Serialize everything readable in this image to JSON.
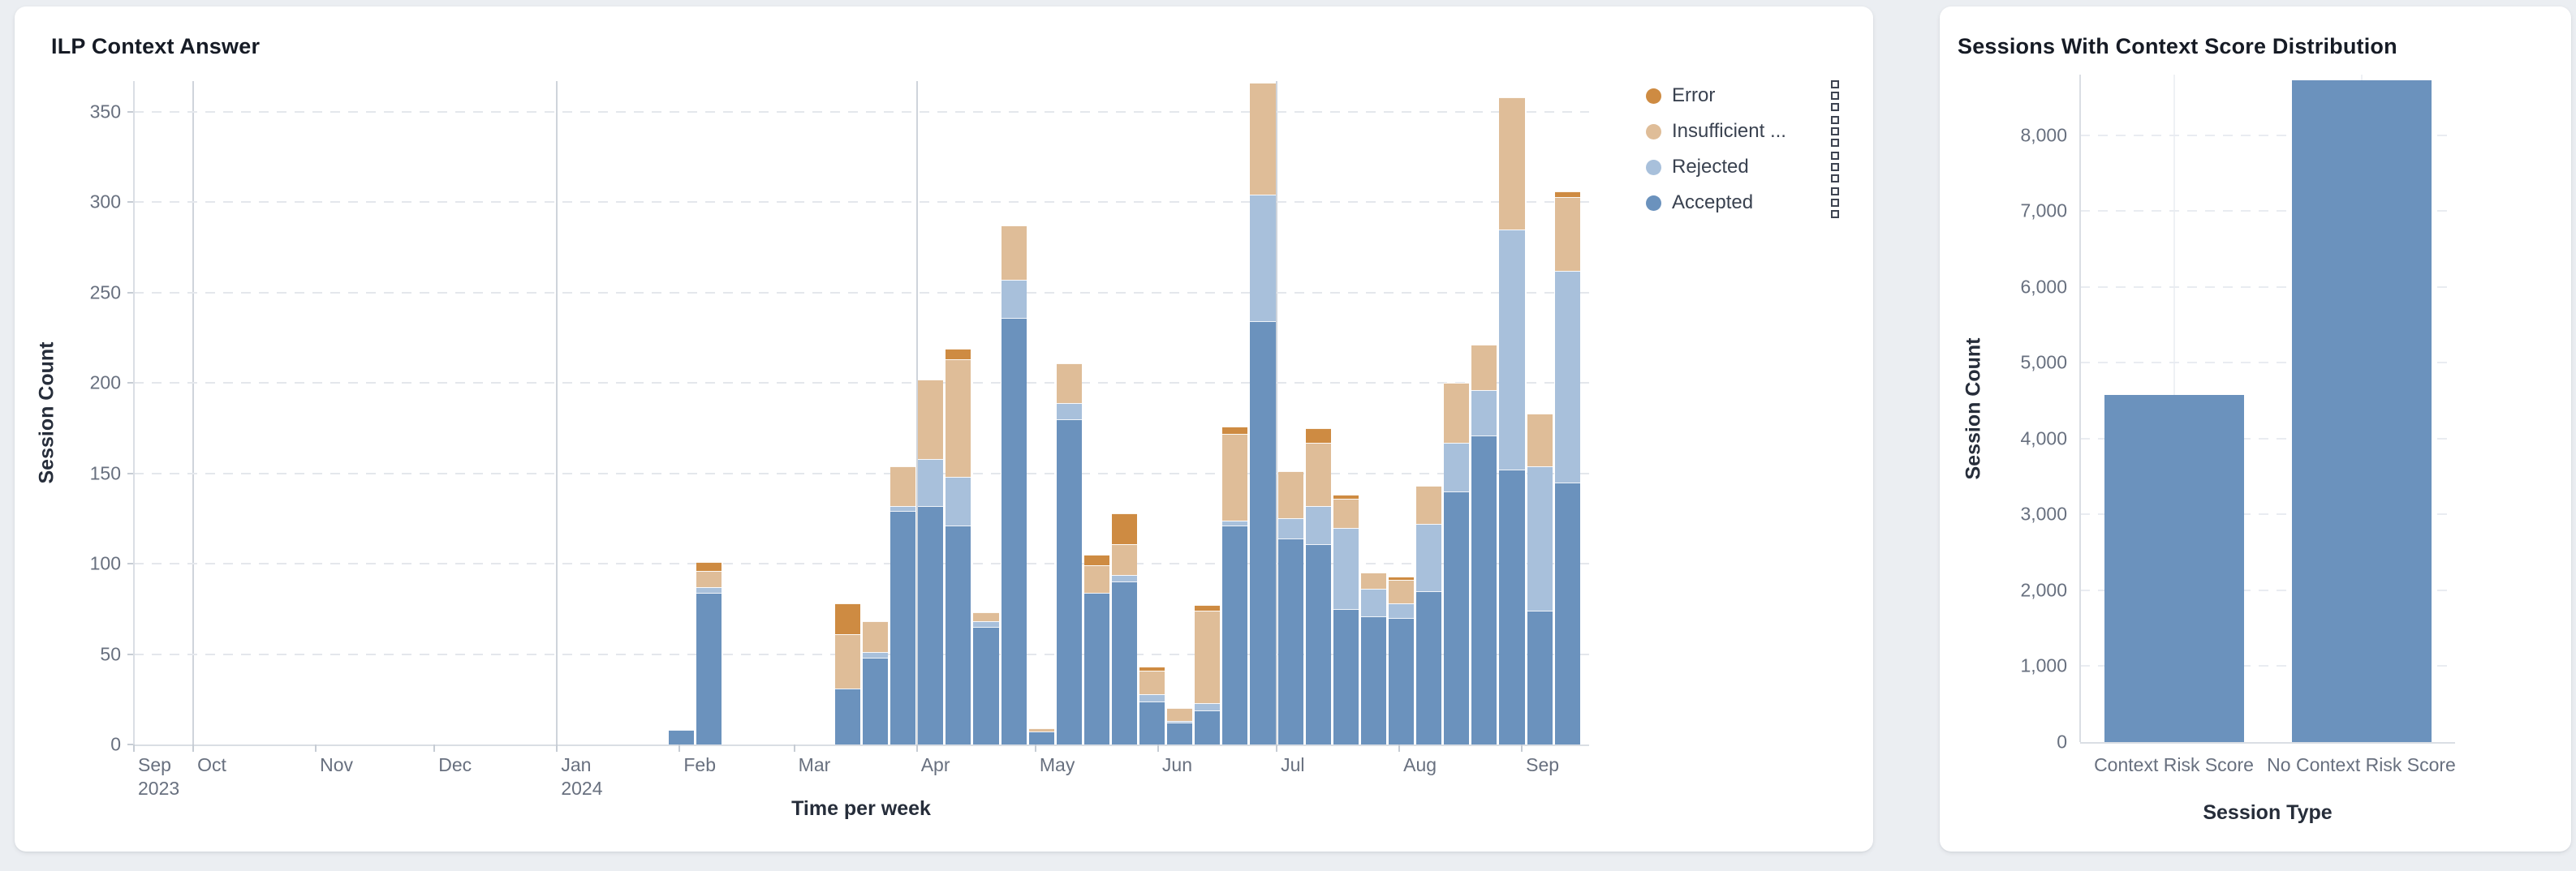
{
  "page": {
    "background": "#ebeef2"
  },
  "left_panel": {
    "title": "ILP Context Answer",
    "y_axis_title": "Session Count",
    "x_axis_title": "Time per week",
    "legend": [
      {
        "label": "Error",
        "color": "#ce8b42"
      },
      {
        "label": "Insufficient ...",
        "color": "#dfbd98"
      },
      {
        "label": "Rejected",
        "color": "#a8c0db"
      },
      {
        "label": "Accepted",
        "color": "#6b92bd"
      }
    ]
  },
  "right_panel": {
    "title": "Sessions With Context Score Distribution",
    "y_axis_title": "Session Count",
    "x_axis_title": "Session Type"
  },
  "chart_data": [
    {
      "type": "bar",
      "stacked": true,
      "title": "ILP Context Answer",
      "xlabel": "Time per week",
      "ylabel": "Session Count",
      "x_axis_type": "time-weekly",
      "x_range": [
        "2023-09-16",
        "2024-09-18"
      ],
      "ylim": [
        0,
        367
      ],
      "y_ticks": [
        0,
        50,
        100,
        150,
        200,
        250,
        300,
        350
      ],
      "grid": "horizontal-dashed",
      "legend_position": "right",
      "month_ticks": [
        {
          "label": "Sep",
          "sublabel": "2023",
          "date": "2023-09-16"
        },
        {
          "label": "Oct",
          "date": "2023-10-01"
        },
        {
          "label": "Nov",
          "date": "2023-11-01"
        },
        {
          "label": "Dec",
          "date": "2023-12-01"
        },
        {
          "label": "Jan",
          "sublabel": "2024",
          "date": "2024-01-01"
        },
        {
          "label": "Feb",
          "date": "2024-02-01"
        },
        {
          "label": "Mar",
          "date": "2024-03-01"
        },
        {
          "label": "Apr",
          "date": "2024-04-01"
        },
        {
          "label": "May",
          "date": "2024-05-01"
        },
        {
          "label": "Jun",
          "date": "2024-06-01"
        },
        {
          "label": "Jul",
          "date": "2024-07-01"
        },
        {
          "label": "Aug",
          "date": "2024-08-01"
        },
        {
          "label": "Sep",
          "date": "2024-09-01"
        }
      ],
      "quarter_gridlines": [
        "2023-10-01",
        "2024-01-01",
        "2024-04-01",
        "2024-07-01"
      ],
      "weeks": [
        "2024-01-29",
        "2024-02-05",
        "2024-03-11",
        "2024-03-18",
        "2024-03-25",
        "2024-04-01",
        "2024-04-08",
        "2024-04-15",
        "2024-04-22",
        "2024-04-29",
        "2024-05-06",
        "2024-05-13",
        "2024-05-20",
        "2024-05-27",
        "2024-06-03",
        "2024-06-10",
        "2024-06-17",
        "2024-06-24",
        "2024-07-01",
        "2024-07-08",
        "2024-07-15",
        "2024-07-22",
        "2024-07-29",
        "2024-08-05",
        "2024-08-12",
        "2024-08-19",
        "2024-08-26",
        "2024-09-02",
        "2024-09-09"
      ],
      "series": [
        {
          "name": "Accepted",
          "color": "#6b92bd",
          "values": [
            8,
            84,
            31,
            48,
            129,
            132,
            121,
            65,
            236,
            7,
            180,
            84,
            90,
            24,
            12,
            19,
            121,
            234,
            114,
            111,
            75,
            71,
            70,
            85,
            140,
            171,
            152,
            74,
            145
          ]
        },
        {
          "name": "Rejected",
          "color": "#a8c0db",
          "values": [
            0,
            3,
            0,
            3,
            3,
            26,
            27,
            3,
            21,
            0,
            9,
            0,
            4,
            4,
            1,
            4,
            3,
            70,
            11,
            21,
            45,
            15,
            8,
            37,
            27,
            25,
            133,
            80,
            117
          ]
        },
        {
          "name": "Insufficient ...",
          "color": "#dfbd98",
          "values": [
            0,
            9,
            30,
            17,
            22,
            44,
            65,
            5,
            30,
            2,
            22,
            15,
            17,
            13,
            7,
            51,
            48,
            62,
            26,
            35,
            16,
            9,
            13,
            21,
            33,
            25,
            73,
            29,
            41
          ]
        },
        {
          "name": "Error",
          "color": "#ce8b42",
          "values": [
            0,
            5,
            17,
            0,
            0,
            0,
            6,
            0,
            0,
            0,
            0,
            6,
            17,
            2,
            0,
            3,
            4,
            0,
            0,
            8,
            2,
            0,
            2,
            0,
            0,
            0,
            0,
            0,
            3
          ]
        }
      ]
    },
    {
      "type": "bar",
      "title": "Sessions With Context Score Distribution",
      "xlabel": "Session Type",
      "ylabel": "Session Count",
      "categories": [
        "Context Risk Score",
        "No Context Risk Score"
      ],
      "values": [
        4580,
        8730
      ],
      "bar_color": "#6b92bd",
      "ylim": [
        0,
        8800
      ],
      "y_ticks": [
        0,
        1000,
        2000,
        3000,
        4000,
        5000,
        6000,
        7000,
        8000
      ],
      "y_tick_labels": [
        "0",
        "1,000",
        "2,000",
        "3,000",
        "4,000",
        "5,000",
        "6,000",
        "7,000",
        "8,000"
      ],
      "grid": "horizontal-dashed"
    }
  ]
}
